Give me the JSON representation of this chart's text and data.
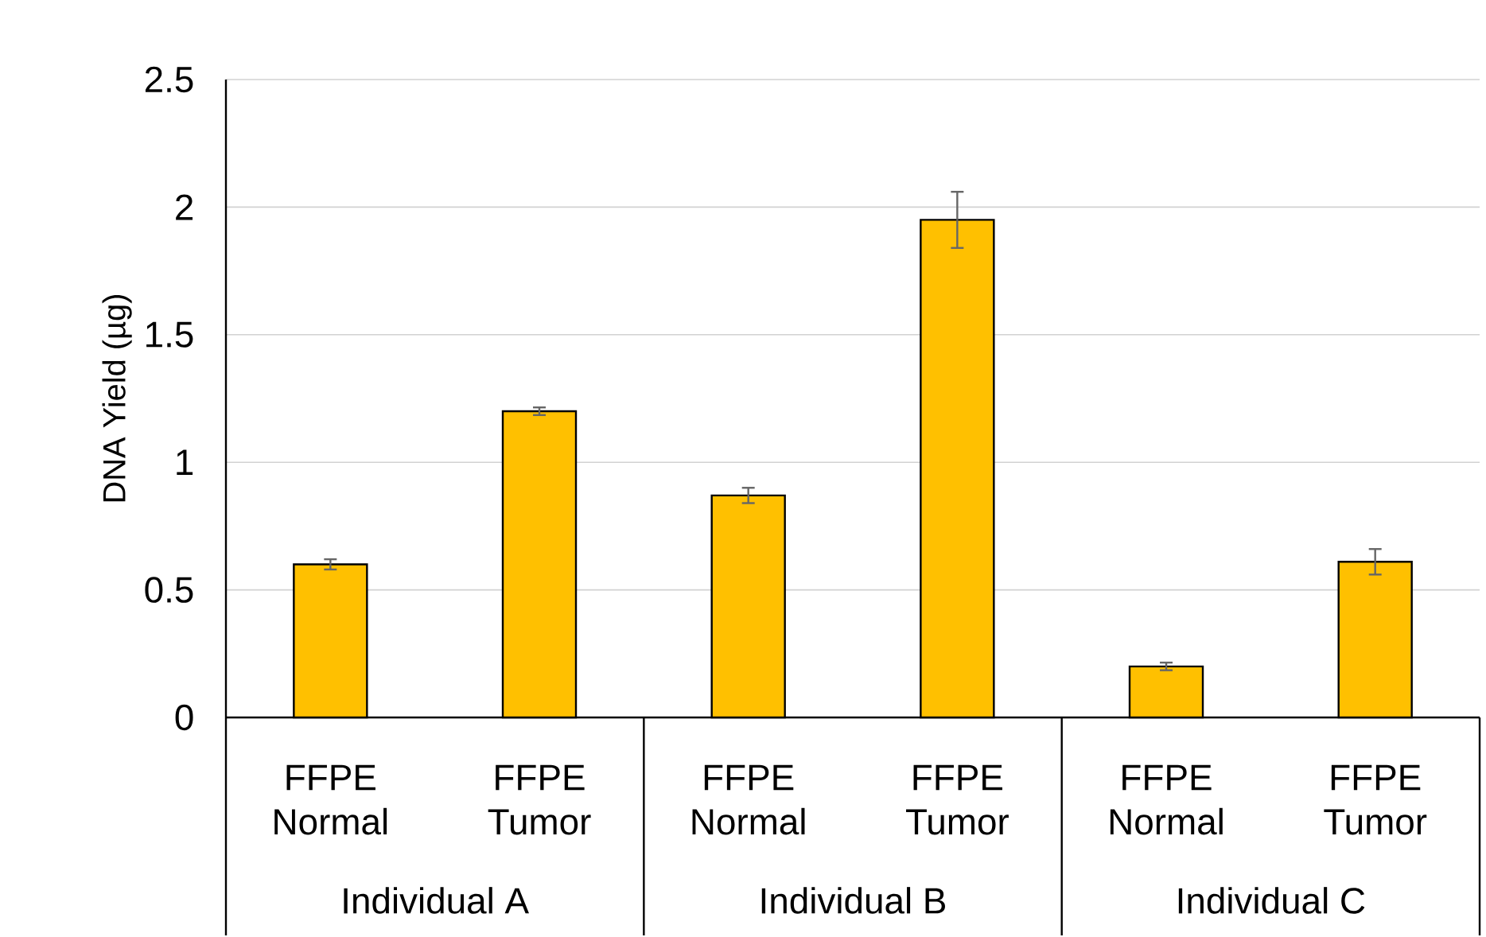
{
  "chart_data": {
    "type": "bar",
    "ylabel": "DNA Yield  (µg)",
    "categories": [
      "FFPE Normal",
      "FFPE Tumor",
      "FFPE Normal",
      "FFPE Tumor",
      "FFPE Normal",
      "FFPE Tumor"
    ],
    "values": [
      0.6,
      1.2,
      0.87,
      1.95,
      0.2,
      0.61
    ],
    "errors": [
      0.02,
      0.015,
      0.03,
      0.11,
      0.015,
      0.05
    ],
    "color": "#ffc000",
    "ylim": [
      0,
      2.5
    ],
    "yticks": [
      0,
      0.5,
      1,
      1.5,
      2,
      2.5
    ],
    "grid": "y",
    "annotations": [
      "Individual A",
      "Individual B",
      "Individual C"
    ]
  }
}
